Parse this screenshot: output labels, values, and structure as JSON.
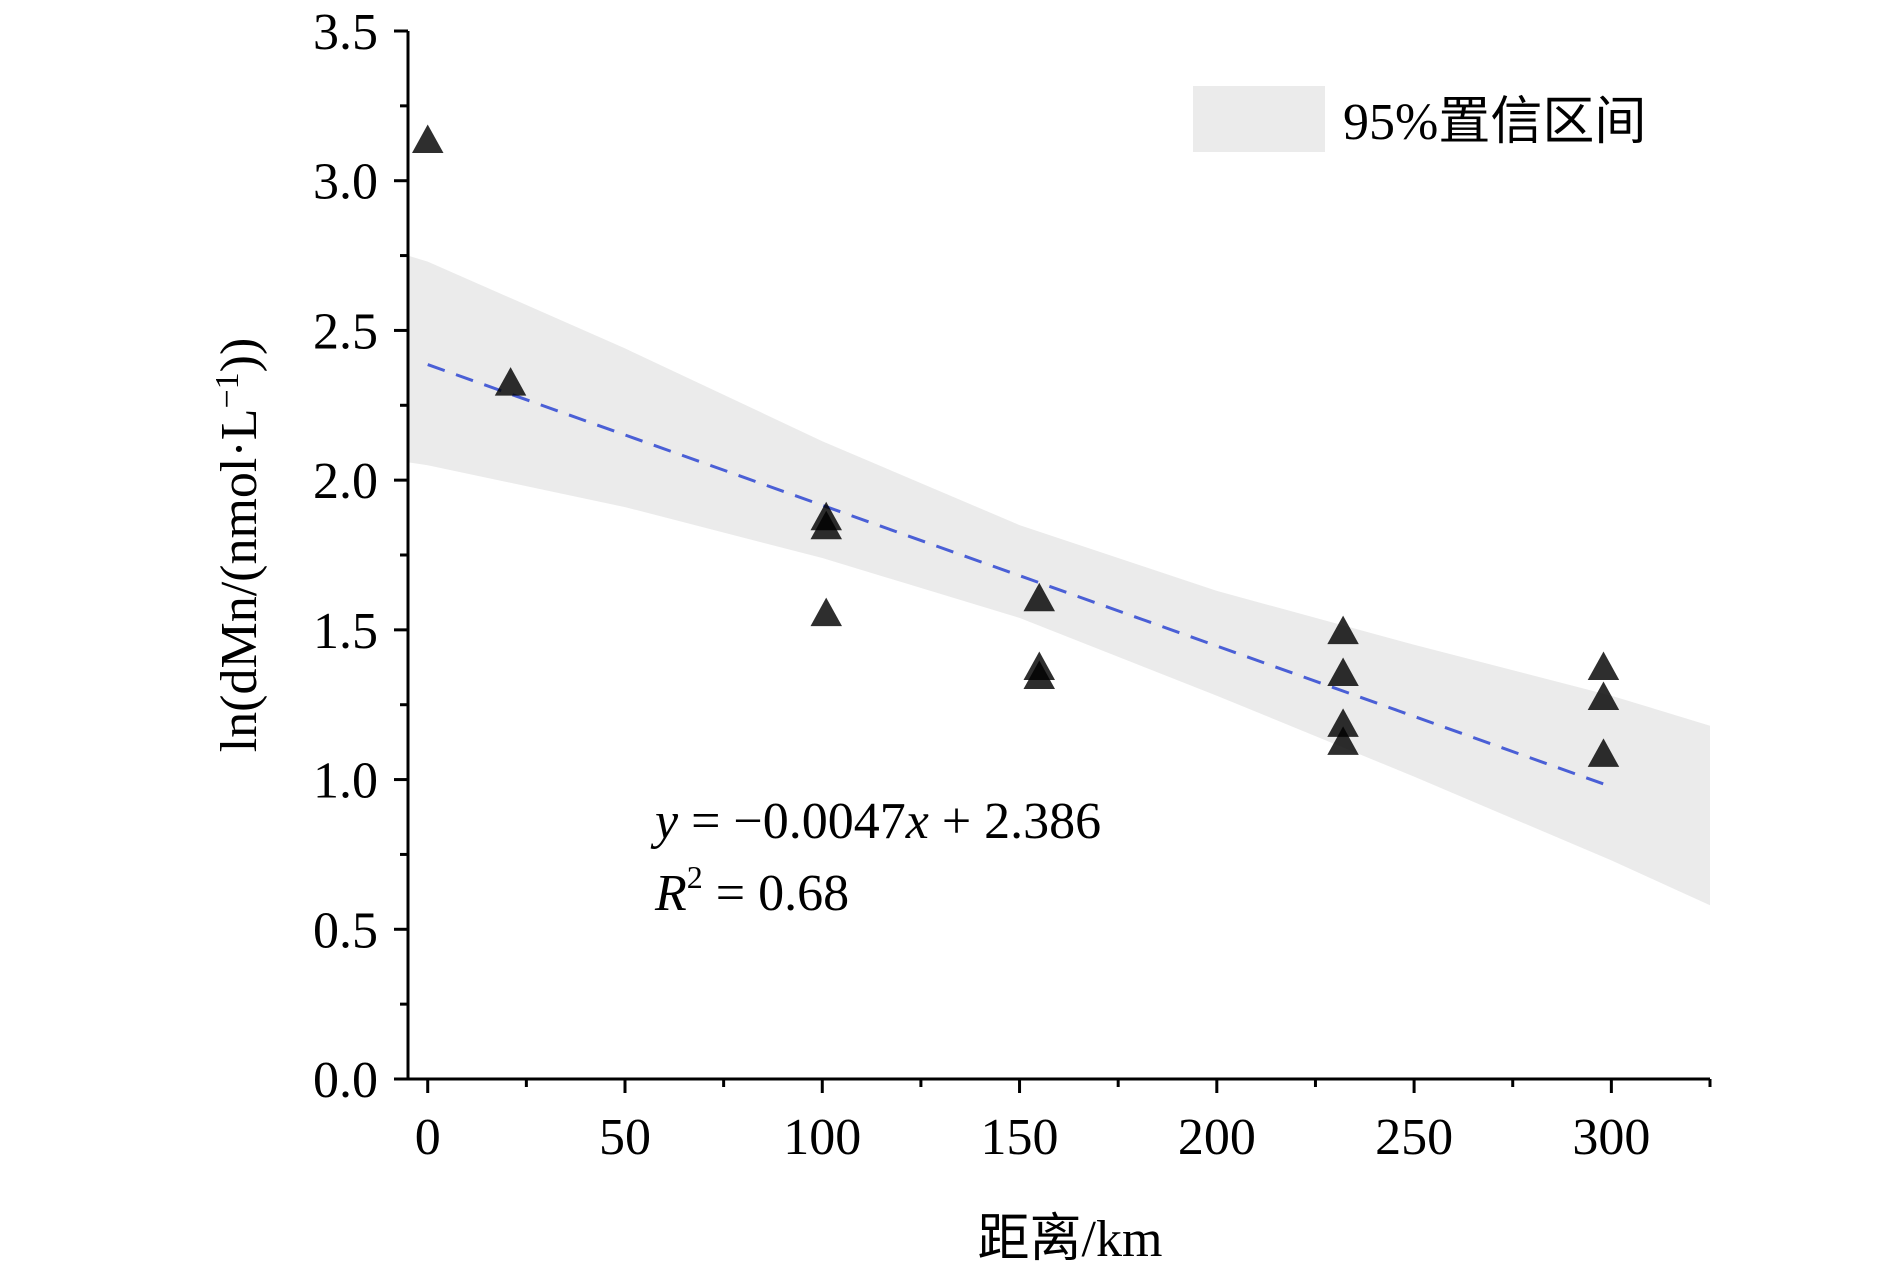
{
  "chart_data": {
    "type": "scatter",
    "title": "",
    "xlabel": "距离/km",
    "ylabel": "ln(dMn/(nmol·L⁻¹))",
    "ylabel_parts": {
      "main": "ln(dMn/(nmol·L",
      "sup": "−1",
      "end": "))"
    },
    "xlim": [
      -5,
      325
    ],
    "ylim": [
      0,
      3.5
    ],
    "x_ticks": [
      0,
      50,
      100,
      150,
      200,
      250,
      300
    ],
    "x_tick_labels": [
      "0",
      "50",
      "100",
      "150",
      "200",
      "250",
      "300"
    ],
    "x_minor_ticks": [
      25,
      75,
      125,
      175,
      225,
      275,
      325
    ],
    "y_ticks": [
      0,
      0.5,
      1.0,
      1.5,
      2.0,
      2.5,
      3.0,
      3.5
    ],
    "y_tick_labels": [
      "0.0",
      "0.5",
      "1.0",
      "1.5",
      "2.0",
      "2.5",
      "3.0",
      "3.5"
    ],
    "y_minor_ticks": [
      0.25,
      0.75,
      1.25,
      1.75,
      2.25,
      2.75,
      3.25
    ],
    "grid": false,
    "series": [
      {
        "name": "",
        "marker": "triangle",
        "color": "#000000",
        "points": [
          {
            "x": 0,
            "y": 3.13
          },
          {
            "x": 21,
            "y": 2.32
          },
          {
            "x": 101,
            "y": 1.87
          },
          {
            "x": 101,
            "y": 1.84
          },
          {
            "x": 101,
            "y": 1.55
          },
          {
            "x": 155,
            "y": 1.6
          },
          {
            "x": 155,
            "y": 1.37
          },
          {
            "x": 155,
            "y": 1.34
          },
          {
            "x": 232,
            "y": 1.49
          },
          {
            "x": 232,
            "y": 1.35
          },
          {
            "x": 232,
            "y": 1.18
          },
          {
            "x": 232,
            "y": 1.12
          },
          {
            "x": 298,
            "y": 1.37
          },
          {
            "x": 298,
            "y": 1.27
          },
          {
            "x": 298,
            "y": 1.08
          }
        ]
      }
    ],
    "fit": {
      "slope": -0.0047,
      "intercept": 2.386,
      "x_range": [
        0,
        298
      ],
      "color": "#4a5fd6",
      "style": "dashed"
    },
    "confidence_band": {
      "label": "95%置信区间",
      "color": "#ebebeb",
      "x": [
        -5,
        0,
        50,
        100,
        150,
        200,
        250,
        300,
        325
      ],
      "lower": [
        2.06,
        2.05,
        1.91,
        1.74,
        1.54,
        1.28,
        1.01,
        0.73,
        0.58
      ],
      "upper": [
        2.75,
        2.73,
        2.44,
        2.13,
        1.85,
        1.63,
        1.45,
        1.28,
        1.18
      ]
    },
    "legend": {
      "position": "top-right",
      "entries": [
        "95%置信区间"
      ]
    },
    "annotations": {
      "equation": {
        "y_var": "y",
        "eq1": " = −0.0047",
        "x_var": "x",
        "eq2": " + 2.386"
      },
      "r2": {
        "r_var": "R",
        "sup": "2",
        "eq": " = 0.68"
      }
    }
  }
}
